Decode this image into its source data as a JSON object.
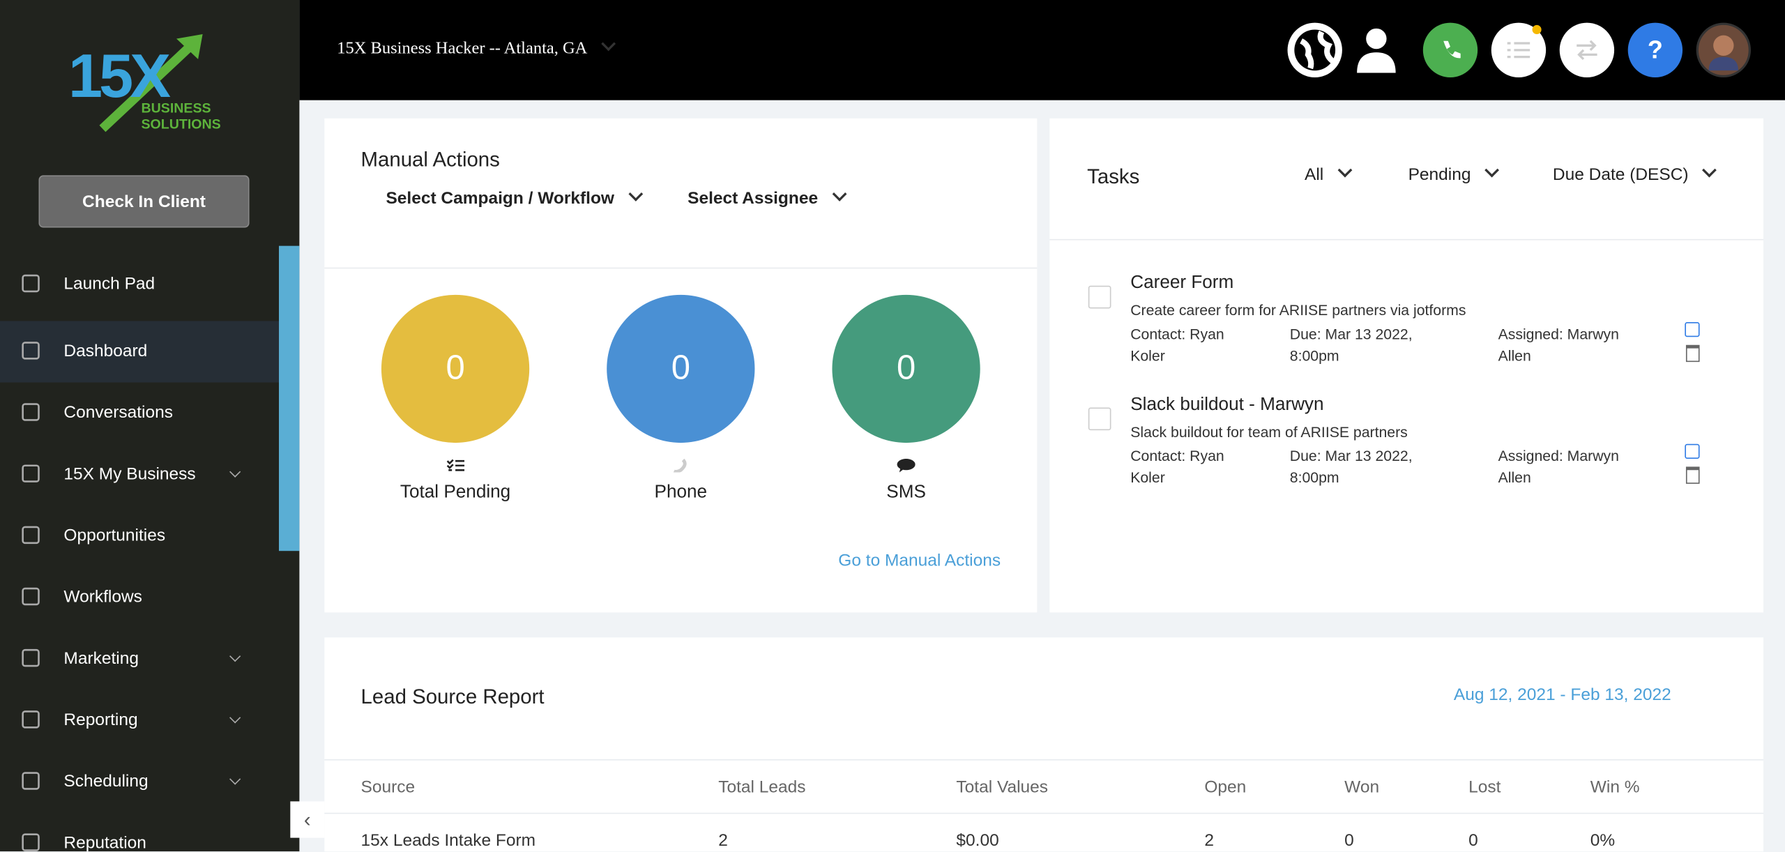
{
  "header": {
    "location": "15X Business Hacker -- Atlanta, GA"
  },
  "sidebar": {
    "logo": {
      "mark": "15X",
      "line1": "BUSINESS",
      "line2": "SOLUTIONS"
    },
    "button": "Check In Client",
    "menu": [
      "Launch Pad",
      "Dashboard",
      "Conversations",
      "15X My Business",
      "Opportunities",
      "Workflows",
      "Marketing",
      "Reporting",
      "Scheduling",
      "Reputation"
    ]
  },
  "manual_actions": {
    "title": "Manual Actions",
    "filters": [
      "Select Campaign / Workflow",
      "Select Assignee"
    ],
    "stats": [
      {
        "value": 0,
        "label": "Total Pending"
      },
      {
        "value": 0,
        "label": "Phone"
      },
      {
        "value": 0,
        "label": "SMS"
      }
    ],
    "link": "Go to Manual Actions"
  },
  "tasks": {
    "title": "Tasks",
    "filters": [
      "All",
      "Pending",
      "Due Date (DESC)"
    ],
    "items": [
      {
        "title": "Career Form",
        "description": "Create career form for ARIISE partners via jotforms",
        "contact": "Contact: Ryan Koler",
        "due": "Due: Mar 13 2022, 8:00pm",
        "assigned": "Assigned: Marwyn Allen"
      },
      {
        "title": "Slack buildout - Marwyn",
        "description": "Slack buildout for team of ARIISE partners",
        "contact": "Contact: Ryan Koler",
        "due": "Due: Mar 13 2022, 8:00pm",
        "assigned": "Assigned: Marwyn Allen"
      }
    ]
  },
  "lead_source_report": {
    "title": "Lead Source Report",
    "date_range": "Aug 12, 2021 - Feb 13, 2022",
    "columns": [
      "Source",
      "Total Leads",
      "Total Values",
      "Open",
      "Won",
      "Lost",
      "Win %"
    ],
    "rows": [
      [
        "15x Leads Intake Form",
        "2",
        "$0.00",
        "2",
        "0",
        "0",
        "0%"
      ]
    ]
  }
}
